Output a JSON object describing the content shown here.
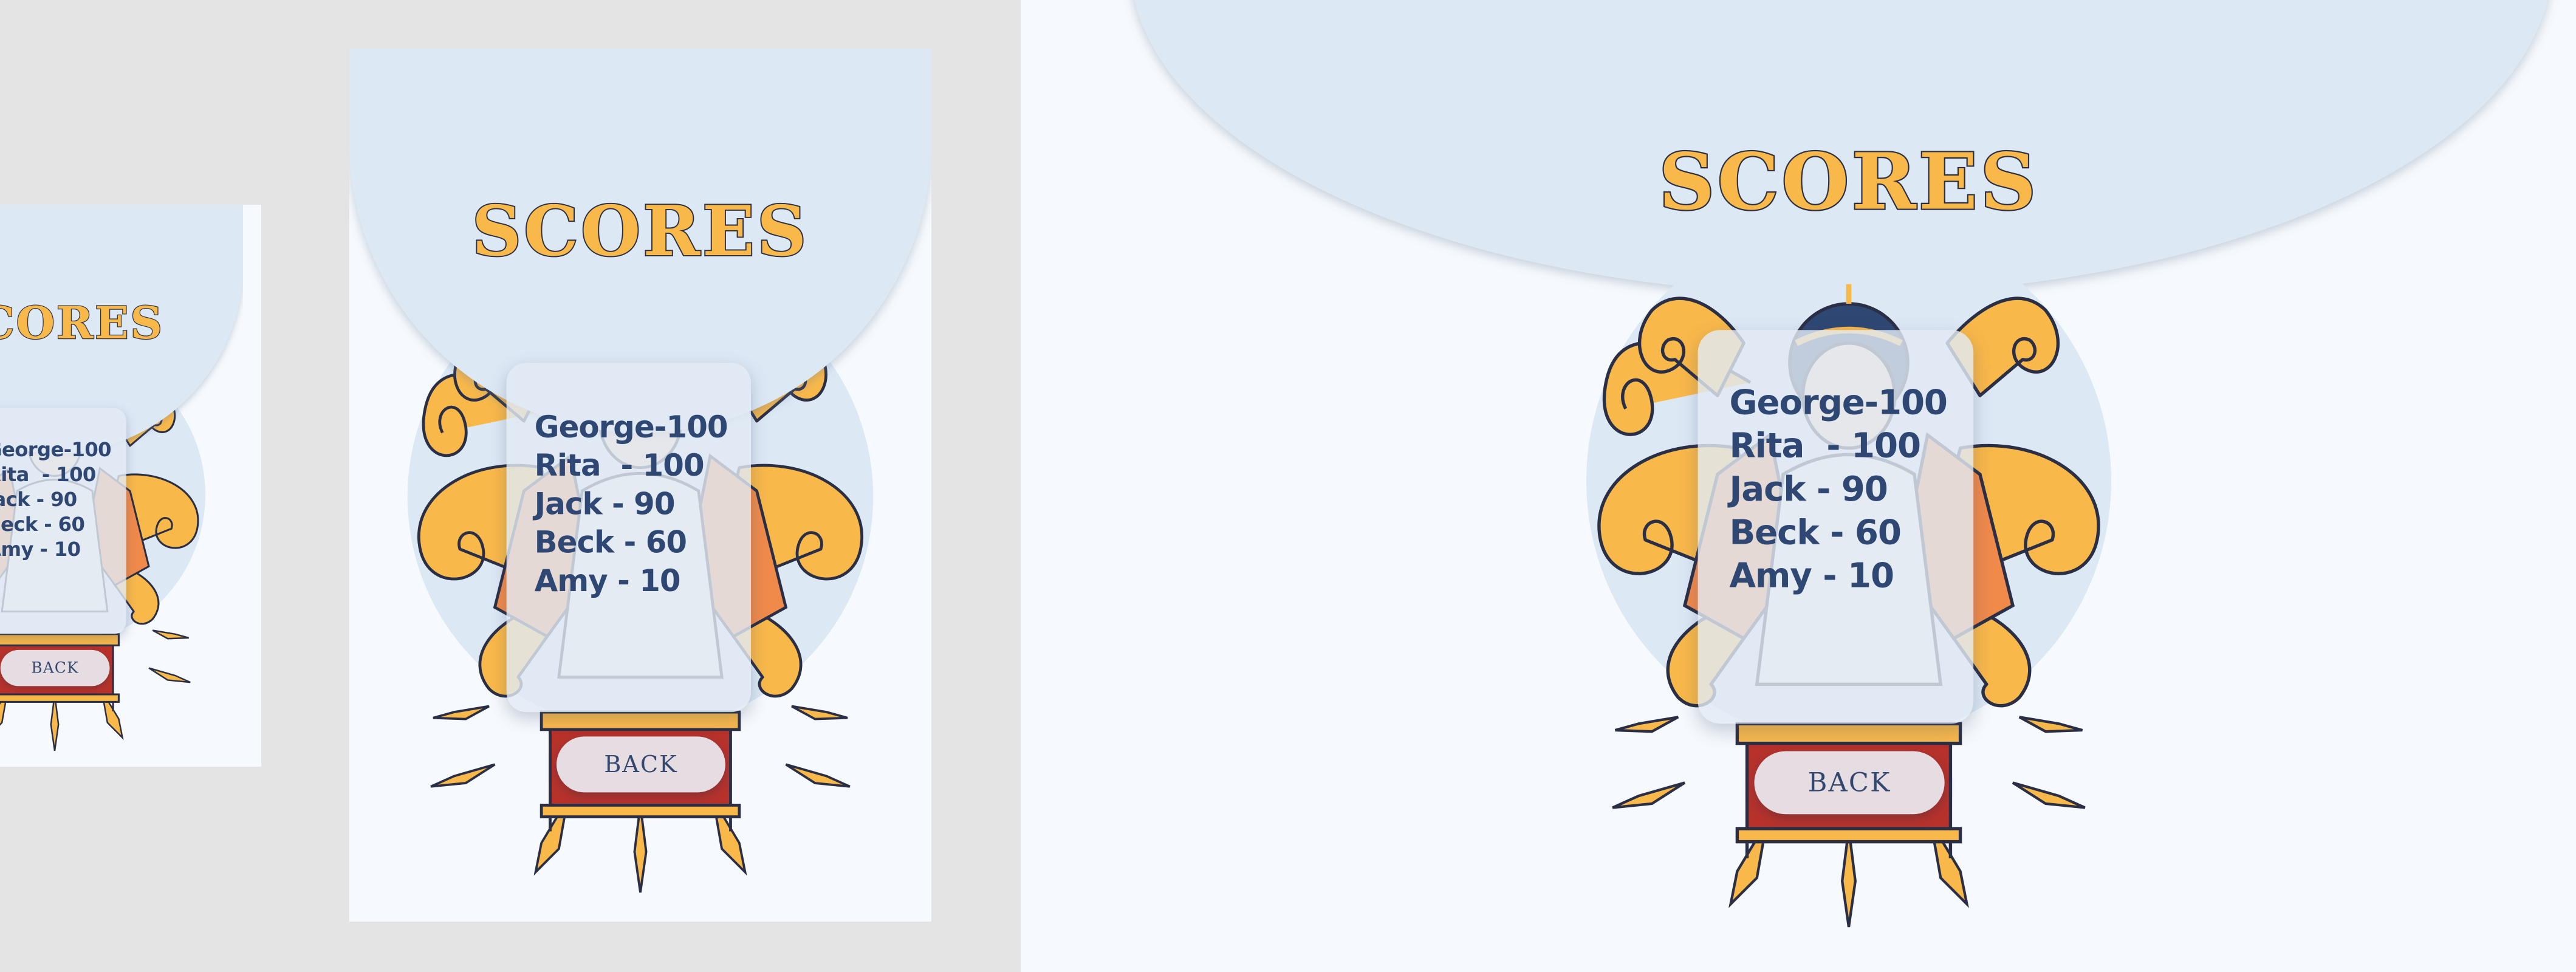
{
  "screen": {
    "title": "SCORES",
    "scores": [
      {
        "label": "George-100"
      },
      {
        "label": "Rita  - 100"
      },
      {
        "label": "Jack - 90"
      },
      {
        "label": "Beck - 60"
      },
      {
        "label": "Amy - 10"
      }
    ],
    "back_label": "BACK"
  },
  "colors": {
    "background": "#f6f9fd",
    "dome": "#dde8f5",
    "title_fill": "#f9b84a",
    "title_outline": "#2b2f45",
    "score_text": "#2f4773",
    "card": "#e2eaf4",
    "outer_background": "#e4e4e4"
  },
  "icons": [
    "zeus-figure-illustration",
    "laurel-wreath-icon",
    "golden-smoke-swirl-icon",
    "throne-pedestal-icon",
    "light-ray-icon"
  ]
}
